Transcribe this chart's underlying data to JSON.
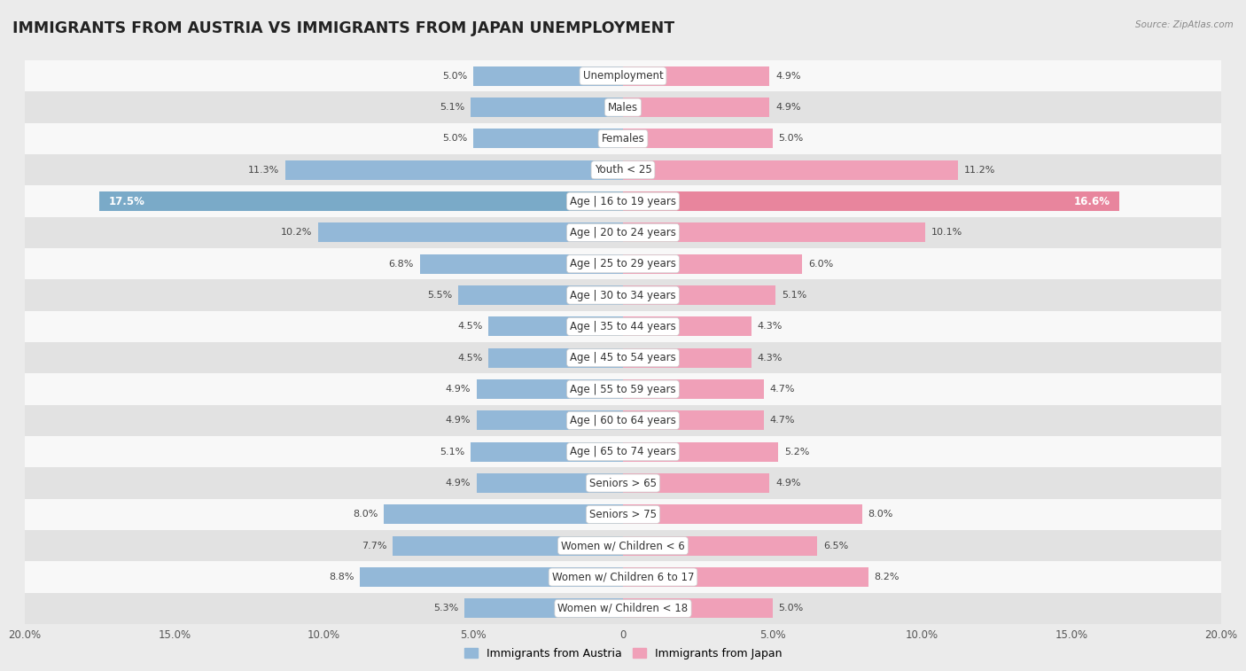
{
  "title": "IMMIGRANTS FROM AUSTRIA VS IMMIGRANTS FROM JAPAN UNEMPLOYMENT",
  "source": "Source: ZipAtlas.com",
  "categories": [
    "Unemployment",
    "Males",
    "Females",
    "Youth < 25",
    "Age | 16 to 19 years",
    "Age | 20 to 24 years",
    "Age | 25 to 29 years",
    "Age | 30 to 34 years",
    "Age | 35 to 44 years",
    "Age | 45 to 54 years",
    "Age | 55 to 59 years",
    "Age | 60 to 64 years",
    "Age | 65 to 74 years",
    "Seniors > 65",
    "Seniors > 75",
    "Women w/ Children < 6",
    "Women w/ Children 6 to 17",
    "Women w/ Children < 18"
  ],
  "austria_values": [
    5.0,
    5.1,
    5.0,
    11.3,
    17.5,
    10.2,
    6.8,
    5.5,
    4.5,
    4.5,
    4.9,
    4.9,
    5.1,
    4.9,
    8.0,
    7.7,
    8.8,
    5.3
  ],
  "japan_values": [
    4.9,
    4.9,
    5.0,
    11.2,
    16.6,
    10.1,
    6.0,
    5.1,
    4.3,
    4.3,
    4.7,
    4.7,
    5.2,
    4.9,
    8.0,
    6.5,
    8.2,
    5.0
  ],
  "austria_color": "#93b8d8",
  "austria_color_dark": "#6a9bbf",
  "japan_color": "#f0a0b8",
  "japan_color_dark": "#d97a98",
  "austria_label": "Immigrants from Austria",
  "japan_label": "Immigrants from Japan",
  "xlim": 20.0,
  "bar_height": 0.62,
  "bg_color": "#ebebeb",
  "row_color_light": "#f8f8f8",
  "row_color_dark": "#e2e2e2",
  "title_fontsize": 12.5,
  "label_fontsize": 8.5,
  "value_fontsize": 8.0,
  "axis_label_color": "#666666",
  "highlight_row": 4,
  "highlight_austria_color": "#7aaac8",
  "highlight_japan_color": "#e8859d"
}
